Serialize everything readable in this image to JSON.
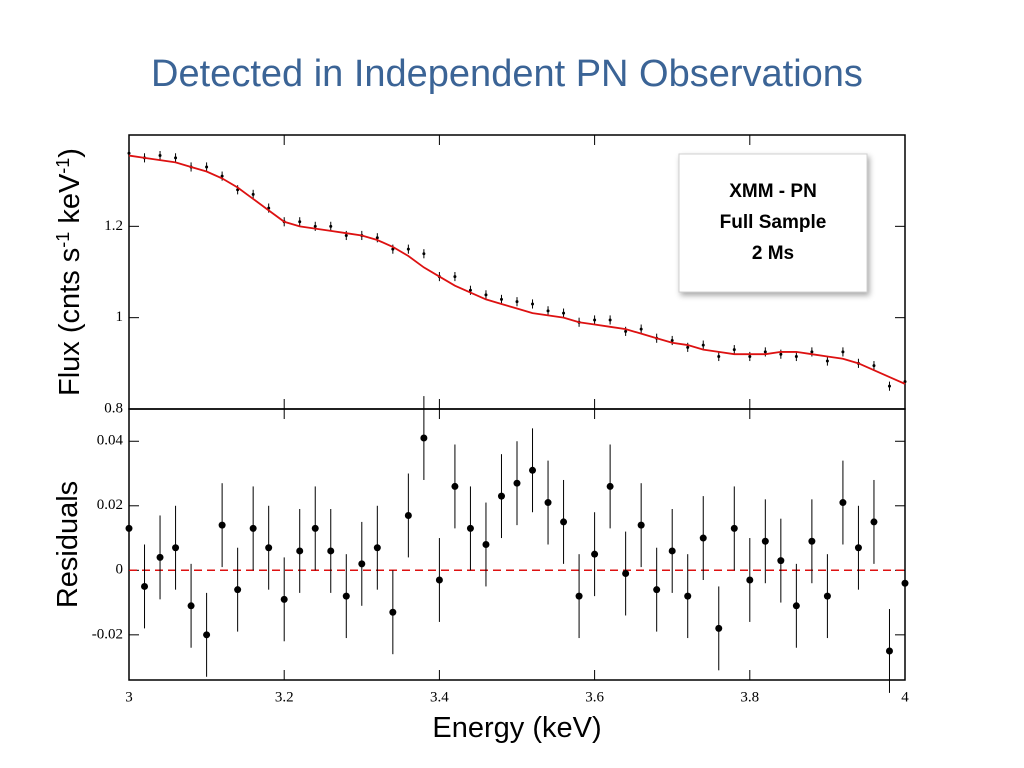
{
  "title": "Detected in Independent PN Observations",
  "chart_data": [
    {
      "type": "scatter",
      "y_label": [
        "Flux (cnts s",
        "-1",
        " keV",
        "-1",
        ")"
      ],
      "annotation": [
        "XMM - PN",
        "Full Sample",
        "2 Ms"
      ],
      "x": [
        3.0,
        3.02,
        3.04,
        3.06,
        3.08,
        3.1,
        3.12,
        3.14,
        3.16,
        3.18,
        3.2,
        3.22,
        3.24,
        3.26,
        3.28,
        3.3,
        3.32,
        3.34,
        3.36,
        3.38,
        3.4,
        3.42,
        3.44,
        3.46,
        3.48,
        3.5,
        3.52,
        3.54,
        3.56,
        3.58,
        3.6,
        3.62,
        3.64,
        3.66,
        3.68,
        3.7,
        3.72,
        3.74,
        3.76,
        3.78,
        3.8,
        3.82,
        3.84,
        3.86,
        3.88,
        3.9,
        3.92,
        3.94,
        3.96,
        3.98,
        4.0
      ],
      "values": [
        1.36,
        1.35,
        1.355,
        1.35,
        1.33,
        1.33,
        1.31,
        1.28,
        1.27,
        1.24,
        1.21,
        1.21,
        1.2,
        1.2,
        1.18,
        1.18,
        1.175,
        1.15,
        1.15,
        1.14,
        1.09,
        1.09,
        1.06,
        1.05,
        1.04,
        1.035,
        1.03,
        1.015,
        1.01,
        0.99,
        0.995,
        0.995,
        0.97,
        0.975,
        0.955,
        0.95,
        0.935,
        0.94,
        0.915,
        0.93,
        0.915,
        0.925,
        0.92,
        0.915,
        0.925,
        0.905,
        0.925,
        0.9,
        0.895,
        0.85,
        0.86
      ],
      "error": 0.01,
      "color": "#000000",
      "model": [
        1.355,
        1.35,
        1.345,
        1.34,
        1.33,
        1.32,
        1.305,
        1.285,
        1.26,
        1.235,
        1.21,
        1.2,
        1.195,
        1.19,
        1.185,
        1.18,
        1.17,
        1.155,
        1.135,
        1.11,
        1.09,
        1.07,
        1.055,
        1.04,
        1.03,
        1.02,
        1.01,
        1.005,
        1.0,
        0.99,
        0.985,
        0.98,
        0.975,
        0.965,
        0.955,
        0.945,
        0.94,
        0.93,
        0.925,
        0.92,
        0.92,
        0.92,
        0.925,
        0.925,
        0.92,
        0.915,
        0.91,
        0.9,
        0.885,
        0.87,
        0.855
      ],
      "model_color": "#dd1111",
      "xlim": [
        3,
        4
      ],
      "ylim": [
        0.8,
        1.4
      ],
      "yticks": [
        0.8,
        1,
        1.2
      ]
    },
    {
      "type": "scatter",
      "y_label": "Residuals",
      "x_label": "Energy (keV)",
      "x": [
        3.0,
        3.02,
        3.04,
        3.06,
        3.08,
        3.1,
        3.12,
        3.14,
        3.16,
        3.18,
        3.2,
        3.22,
        3.24,
        3.26,
        3.28,
        3.3,
        3.32,
        3.34,
        3.36,
        3.38,
        3.4,
        3.42,
        3.44,
        3.46,
        3.48,
        3.5,
        3.52,
        3.54,
        3.56,
        3.58,
        3.6,
        3.62,
        3.64,
        3.66,
        3.68,
        3.7,
        3.72,
        3.74,
        3.76,
        3.78,
        3.8,
        3.82,
        3.84,
        3.86,
        3.88,
        3.9,
        3.92,
        3.94,
        3.96,
        3.98,
        4.0
      ],
      "values": [
        0.013,
        -0.005,
        0.004,
        0.007,
        -0.011,
        -0.02,
        0.014,
        -0.006,
        0.013,
        0.007,
        -0.009,
        0.006,
        0.013,
        0.006,
        -0.008,
        0.002,
        0.007,
        -0.013,
        0.017,
        0.041,
        -0.003,
        0.026,
        0.013,
        0.008,
        0.023,
        0.027,
        0.031,
        0.021,
        0.015,
        -0.008,
        0.005,
        0.026,
        -0.001,
        0.014,
        -0.006,
        0.006,
        -0.008,
        0.01,
        -0.018,
        0.013,
        -0.003,
        0.009,
        0.003,
        -0.011,
        0.009,
        -0.008,
        0.021,
        0.007,
        0.015,
        -0.025,
        -0.004
      ],
      "error": 0.013,
      "color": "#000000",
      "reference_line": {
        "value": 0,
        "color": "#dd1111",
        "dashed": true
      },
      "xlim": [
        3,
        4
      ],
      "xticks": [
        3,
        3.2,
        3.4,
        3.6,
        3.8,
        4
      ],
      "ylim": [
        -0.034,
        0.05
      ],
      "yticks": [
        -0.02,
        0,
        0.02,
        0.04
      ]
    }
  ]
}
